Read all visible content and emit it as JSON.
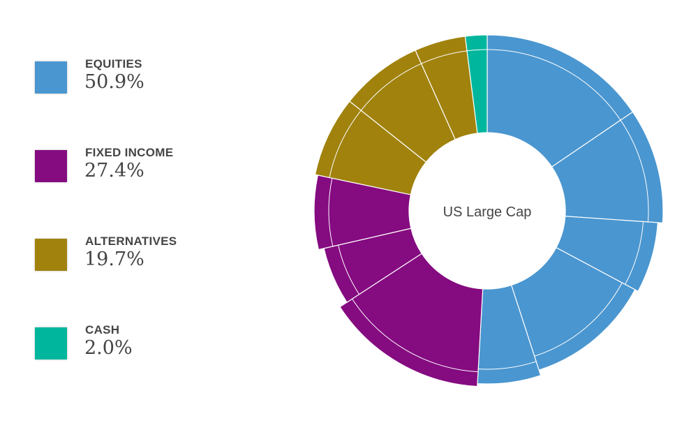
{
  "chart_data": {
    "type": "pie",
    "title": "",
    "center_label": "US Large Cap",
    "legend": [
      {
        "name": "EQUITIES",
        "value_label": "50.9%",
        "value": 50.9,
        "color": "#4a96d0"
      },
      {
        "name": "FIXED INCOME",
        "value_label": "27.4%",
        "value": 27.4,
        "color": "#850b80"
      },
      {
        "name": "ALTERNATIVES",
        "value_label": "19.7%",
        "value": 19.7,
        "color": "#a0820d"
      },
      {
        "name": "CASH",
        "value_label": "2.0%",
        "value": 2.0,
        "color": "#00b69c"
      }
    ],
    "slices": [
      {
        "group": "EQUITIES",
        "value": 15.5
      },
      {
        "group": "EQUITIES",
        "value": 10.6
      },
      {
        "group": "EQUITIES",
        "value": 6.7
      },
      {
        "group": "EQUITIES",
        "value": 12.2
      },
      {
        "group": "EQUITIES",
        "value": 5.9
      },
      {
        "group": "FIXED INCOME",
        "value": 14.9
      },
      {
        "group": "FIXED INCOME",
        "value": 5.6
      },
      {
        "group": "FIXED INCOME",
        "value": 6.9
      },
      {
        "group": "ALTERNATIVES",
        "value": 7.4
      },
      {
        "group": "ALTERNATIVES",
        "value": 7.6
      },
      {
        "group": "ALTERNATIVES",
        "value": 4.7
      },
      {
        "group": "CASH",
        "value": 2.0
      }
    ]
  }
}
